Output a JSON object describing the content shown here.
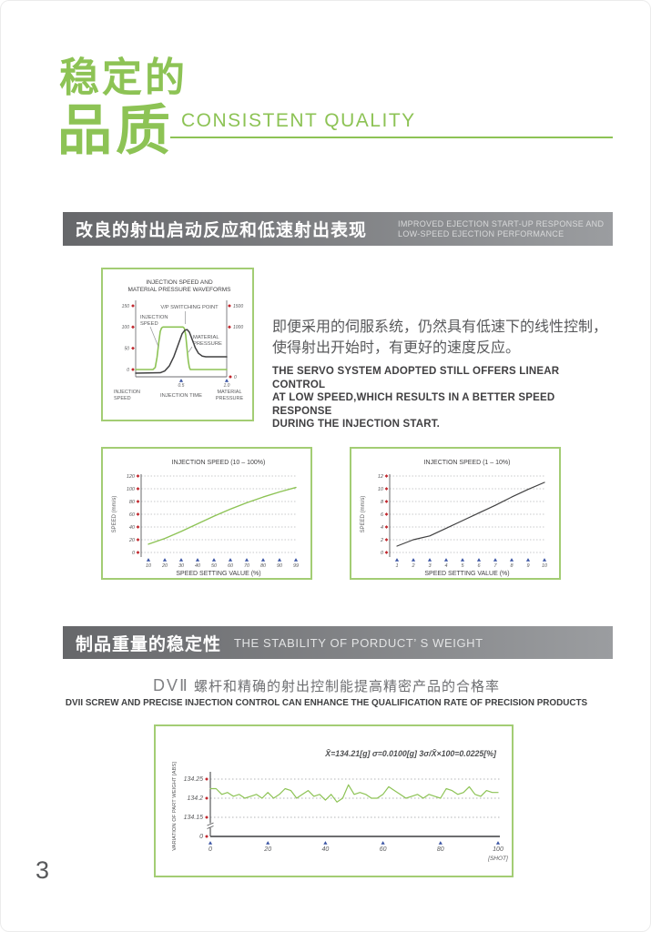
{
  "page": {
    "number": "3"
  },
  "header": {
    "title_line1": "稳定的",
    "title_line2": "品质",
    "subtitle": "CONSISTENT QUALITY"
  },
  "section1": {
    "banner_zh": "改良的射出启动反应和低速射出表现",
    "banner_en_line1": "IMPROVED EJECTION START-UP RESPONSE AND",
    "banner_en_line2": "LOW-SPEED EJECTION PERFORMANCE",
    "body_zh_line1": "即便采用的伺服系统，仍然具有低速下的线性控制，",
    "body_zh_line2": "使得射出开始时，有更好的速度反应。",
    "body_en_line1": "THE SERVO SYSTEM ADOPTED STILL OFFERS LINEAR CONTROL",
    "body_en_line2": "AT LOW SPEED,WHICH RESULTS IN A BETTER SPEED RESPONSE",
    "body_en_line3": "DURING THE INJECTION START."
  },
  "section2": {
    "banner_zh": "制品重量的稳定性",
    "banner_en": "THE STABILITY OF PORDUCT’ S WEIGHT",
    "heading_zh_prefix": "DVⅡ",
    "heading_zh_rest": " 螺杆和精确的射出控制能提高精密产品的合格率",
    "heading_en": "DVII SCREW AND PRECISE INJECTION CONTROL CAN ENHANCE THE QUALIFICATION RATE OF PRECISION PRODUCTS"
  },
  "colors": {
    "green": "#8dc355",
    "box_border_green": "#a3cd74",
    "dark_line": "#404041",
    "axis_gray": "#808285",
    "text_gray": "#58595b",
    "tick_red": "#c1272d",
    "tick_blue": "#3953a4",
    "grid_gray": "#929497"
  },
  "chart_data": [
    {
      "type": "line",
      "name": "waveform-chart",
      "title_line1": "INJECTION SPEED AND",
      "title_line2": "MATERIAL PRESSURE WAVEFORMS",
      "left_axis": {
        "label_line1": "INJECTION",
        "label_line2": "SPEED",
        "ticks": [
          "150",
          "100",
          "50",
          "0"
        ]
      },
      "right_axis": {
        "label_line1": "MATERIAL",
        "label_line2": "PRESSURE",
        "ticks": [
          "1500",
          "1000"
        ],
        "bottom_tick": "0"
      },
      "x_axis": {
        "label": "INJECTION TIME",
        "ticks": [
          "0.5",
          "1.0"
        ]
      },
      "annotations": {
        "vp": "V/P SWITCHING POINT",
        "speed_line1": "INJECTION",
        "speed_line2": "SPEED",
        "pressure_line1": "MATERIAL",
        "pressure_line2": "PRESSURE"
      },
      "series": [
        {
          "name": "injection-speed",
          "color": "green",
          "points": [
            [
              0,
              0.907
            ],
            [
              0.19,
              0.907
            ],
            [
              0.215,
              0.88
            ],
            [
              0.235,
              0.75
            ],
            [
              0.255,
              0.55
            ],
            [
              0.27,
              0.42
            ],
            [
              0.285,
              0.375
            ],
            [
              0.3,
              0.364
            ],
            [
              0.52,
              0.364
            ],
            [
              0.535,
              0.38
            ],
            [
              0.55,
              0.47
            ],
            [
              0.565,
              0.65
            ],
            [
              0.578,
              0.8
            ],
            [
              0.59,
              0.88
            ],
            [
              0.6,
              0.907
            ],
            [
              1,
              0.907
            ]
          ]
        },
        {
          "name": "material-pressure",
          "color": "dark",
          "points": [
            [
              0,
              0.953
            ],
            [
              0.27,
              0.948
            ],
            [
              0.32,
              0.925
            ],
            [
              0.37,
              0.86
            ],
            [
              0.42,
              0.74
            ],
            [
              0.47,
              0.58
            ],
            [
              0.51,
              0.45
            ],
            [
              0.54,
              0.405
            ],
            [
              0.565,
              0.397
            ],
            [
              0.59,
              0.43
            ],
            [
              0.62,
              0.52
            ],
            [
              0.655,
              0.63
            ],
            [
              0.69,
              0.7
            ],
            [
              0.73,
              0.735
            ],
            [
              0.77,
              0.744
            ],
            [
              1,
              0.744
            ]
          ]
        }
      ]
    },
    {
      "type": "line",
      "name": "speed-chart-10-100",
      "title": "INJECTION SPEED (10 – 100%)",
      "xlabel": "SPEED SETTING VALUE (%)",
      "ylabel": "SPEED  (mm/s)",
      "x": [
        "10",
        "20",
        "30",
        "40",
        "50",
        "60",
        "70",
        "80",
        "90",
        "99"
      ],
      "values": [
        13,
        22,
        33,
        45,
        57,
        68,
        78,
        87,
        95,
        102
      ],
      "ylim": [
        0,
        120
      ],
      "yticks": [
        0,
        20,
        40,
        60,
        80,
        100,
        120
      ],
      "color": "green"
    },
    {
      "type": "line",
      "name": "speed-chart-1-10",
      "title": "INJECTION SPEED (1 – 10%)",
      "xlabel": "SPEED SETTING VALUE (%)",
      "ylabel": "SPEED  (mm/s)",
      "x": [
        "1",
        "2",
        "3",
        "4",
        "5",
        "6",
        "7",
        "8",
        "9",
        "10"
      ],
      "values": [
        1,
        2,
        2.6,
        3.8,
        5,
        6.2,
        7.4,
        8.7,
        9.9,
        11
      ],
      "ylim": [
        0,
        12
      ],
      "yticks": [
        0,
        2,
        4,
        6,
        8,
        10,
        12
      ],
      "color": "dark"
    },
    {
      "type": "line",
      "name": "weight-stability-chart",
      "stats": "X̄=134.21[g]    σ=0.0100[g]    3σ/X̄×100=0.0225[%]",
      "ylabel": "VARIATION OF PART WEIGHT [ABS]",
      "yticks": [
        "134.25",
        "134.2",
        "134.15",
        "0"
      ],
      "grid_yticks": [
        134.25,
        134.2,
        134.15
      ],
      "xticks": [
        0,
        20,
        40,
        60,
        80,
        100
      ],
      "x_unit": "[SHOT]",
      "x_step": 2,
      "values": [
        134.225,
        134.225,
        134.21,
        134.215,
        134.205,
        134.21,
        134.2,
        134.205,
        134.21,
        134.2,
        134.215,
        134.2,
        134.21,
        134.225,
        134.22,
        134.2,
        134.21,
        134.22,
        134.205,
        134.21,
        134.195,
        134.21,
        134.19,
        134.2,
        134.235,
        134.21,
        134.215,
        134.21,
        134.2,
        134.2,
        134.21,
        134.23,
        134.22,
        134.21,
        134.2,
        134.205,
        134.21,
        134.2,
        134.21,
        134.205,
        134.2,
        134.225,
        134.22,
        134.21,
        134.215,
        134.23,
        134.21,
        134.205,
        134.22,
        134.215,
        134.215
      ],
      "color": "green"
    }
  ]
}
